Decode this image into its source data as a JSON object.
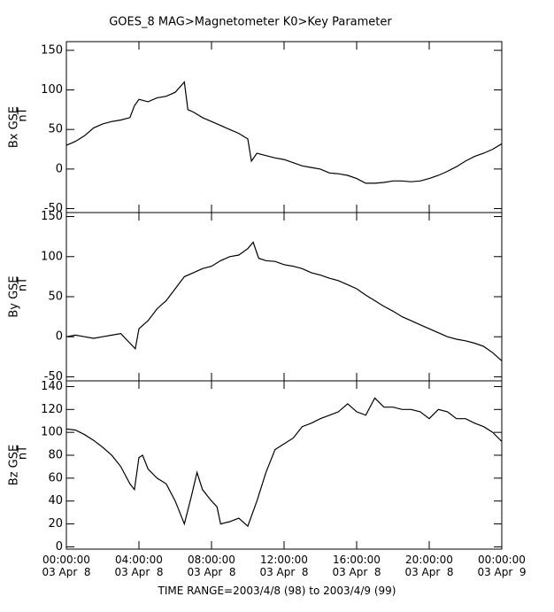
{
  "chart_data": [
    {
      "type": "line",
      "title": "GOES_8  MAG>Magnetometer  K0>Key Parameter",
      "ylabel": "Bx GSE",
      "yunit": "nT",
      "color": "#000000",
      "x": [
        0,
        0.5,
        1,
        1.5,
        2,
        2.5,
        3,
        3.5,
        3.75,
        4,
        4.5,
        5,
        5.5,
        6,
        6.5,
        6.7,
        7,
        7.5,
        8,
        8.5,
        9,
        9.5,
        10,
        10.2,
        10.5,
        11,
        11.5,
        12,
        12.5,
        13,
        13.5,
        14,
        14.5,
        15,
        15.5,
        16,
        16.5,
        17,
        17.5,
        18,
        18.5,
        19,
        19.5,
        20,
        20.5,
        21,
        21.5,
        22,
        22.5,
        23,
        23.5,
        24
      ],
      "values": [
        30,
        35,
        42,
        52,
        57,
        60,
        62,
        65,
        80,
        88,
        85,
        90,
        92,
        97,
        110,
        75,
        72,
        65,
        60,
        55,
        50,
        45,
        38,
        10,
        20,
        17,
        14,
        12,
        8,
        4,
        2,
        0,
        -5,
        -6,
        -8,
        -12,
        -18,
        -18,
        -17,
        -15,
        -15,
        -16,
        -15,
        -12,
        -8,
        -3,
        3,
        10,
        16,
        20,
        25,
        32
      ],
      "xlim": [
        0,
        24
      ],
      "ylim": [
        -55,
        161
      ],
      "yticks": [
        -50,
        0,
        50,
        100,
        150
      ]
    },
    {
      "type": "line",
      "ylabel": "By GSE",
      "yunit": "nT",
      "color": "#000000",
      "x": [
        0,
        0.5,
        1,
        1.5,
        2,
        2.5,
        3,
        3.5,
        3.8,
        4,
        4.5,
        5,
        5.5,
        6,
        6.5,
        7,
        7.5,
        8,
        8.5,
        9,
        9.5,
        10,
        10.3,
        10.6,
        11,
        11.5,
        12,
        12.5,
        13,
        13.5,
        14,
        14.5,
        15,
        15.5,
        16,
        16.5,
        17,
        17.5,
        18,
        18.5,
        19,
        19.5,
        20,
        20.5,
        21,
        21.5,
        22,
        22.5,
        23,
        23.5,
        24
      ],
      "values": [
        0,
        2,
        0,
        -2,
        0,
        2,
        4,
        -8,
        -15,
        10,
        20,
        35,
        45,
        60,
        75,
        80,
        85,
        88,
        95,
        100,
        102,
        110,
        118,
        98,
        95,
        94,
        90,
        88,
        85,
        80,
        77,
        73,
        70,
        65,
        60,
        52,
        45,
        38,
        32,
        25,
        20,
        15,
        10,
        5,
        0,
        -3,
        -5,
        -8,
        -12,
        -20,
        -30
      ],
      "xlim": [
        0,
        24
      ],
      "ylim": [
        -55,
        155
      ],
      "yticks": [
        -50,
        0,
        50,
        100,
        150
      ]
    },
    {
      "type": "line",
      "ylabel": "Bz GSE",
      "yunit": "nT",
      "color": "#000000",
      "xlabel": "TIME RANGE=2003/4/8 (98) to 2003/4/9 (99)",
      "x": [
        0,
        0.5,
        1,
        1.5,
        2,
        2.5,
        3,
        3.5,
        3.75,
        4,
        4.2,
        4.5,
        5,
        5.5,
        6,
        6.5,
        6.9,
        7.2,
        7.5,
        8,
        8.3,
        8.5,
        9,
        9.5,
        10,
        10.5,
        11,
        11.5,
        12,
        12.5,
        13,
        13.5,
        14,
        14.5,
        15,
        15.5,
        16,
        16.5,
        17,
        17.5,
        18,
        18.5,
        19,
        19.5,
        20,
        20.5,
        21,
        21.5,
        22,
        22.5,
        23,
        23.5,
        24
      ],
      "values": [
        103,
        102,
        98,
        93,
        87,
        80,
        70,
        55,
        50,
        78,
        80,
        68,
        60,
        55,
        40,
        20,
        45,
        65,
        50,
        40,
        35,
        20,
        22,
        25,
        18,
        40,
        65,
        85,
        90,
        95,
        105,
        108,
        112,
        115,
        118,
        125,
        118,
        115,
        130,
        122,
        122,
        120,
        120,
        118,
        112,
        120,
        118,
        112,
        112,
        108,
        105,
        100,
        92
      ],
      "xlim": [
        0,
        24
      ],
      "ylim": [
        -2,
        145
      ],
      "yticks": [
        0,
        20,
        40,
        60,
        80,
        100,
        120,
        140
      ],
      "xticks": [
        {
          "value": 0,
          "label": "00:00:00\n03 Apr  8"
        },
        {
          "value": 4,
          "label": "04:00:00\n03 Apr  8"
        },
        {
          "value": 8,
          "label": "08:00:00\n03 Apr  8"
        },
        {
          "value": 12,
          "label": "12:00:00\n03 Apr  8"
        },
        {
          "value": 16,
          "label": "16:00:00\n03 Apr  8"
        },
        {
          "value": 20,
          "label": "20:00:00\n03 Apr  8"
        },
        {
          "value": 24,
          "label": "00:00:00\n03 Apr  9"
        }
      ]
    }
  ]
}
